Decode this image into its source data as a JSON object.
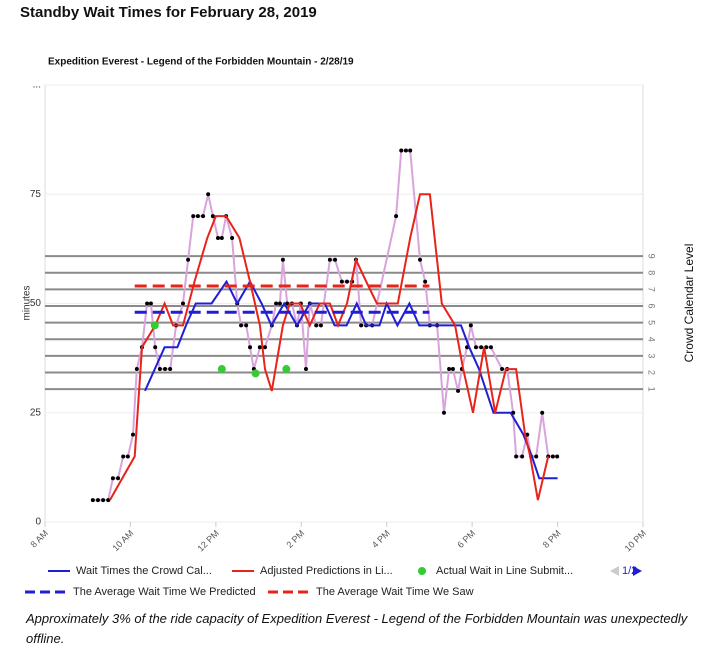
{
  "title": "Standby Wait Times for February 28, 2019",
  "chart_data": {
    "type": "line",
    "title": "Expedition Everest - Legend of the Forbidden Mountain - 2/28/19",
    "y_label": "minutes",
    "y2_label": "Crowd Calendar Level",
    "xlim": [
      8,
      22
    ],
    "xticks": [
      {
        "value": 8,
        "label": "8 AM"
      },
      {
        "value": 10,
        "label": "10 AM"
      },
      {
        "value": 12,
        "label": "12 PM"
      },
      {
        "value": 14,
        "label": "2 PM"
      },
      {
        "value": 16,
        "label": "4 PM"
      },
      {
        "value": 18,
        "label": "6 PM"
      },
      {
        "value": 20,
        "label": "8 PM"
      },
      {
        "value": 22,
        "label": "10 PM"
      }
    ],
    "ylim": [
      0,
      100
    ],
    "yticks": [
      0,
      25,
      50,
      75,
      {
        "value": 100,
        "label": "..."
      }
    ],
    "y2lim": [
      -7,
      19.3
    ],
    "y2ticks": [
      1,
      2,
      3,
      4,
      5,
      6,
      7,
      8,
      9
    ],
    "grid": true,
    "legend_page": "1/2",
    "series": [
      {
        "style": "line",
        "color": "#d9a3dc",
        "x": [
          9.12,
          9.24,
          9.36,
          9.48,
          9.59,
          9.71,
          9.83,
          9.94,
          10.06,
          10.15,
          10.27,
          10.39,
          10.48,
          10.58,
          10.69,
          10.81,
          10.93,
          11.07,
          11.23,
          11.35,
          11.47,
          11.58,
          11.7,
          11.82,
          11.93,
          12.05,
          12.14,
          12.24,
          12.38,
          12.5,
          12.59,
          12.71,
          12.8,
          12.89,
          13.03,
          13.15,
          13.31,
          13.41,
          13.5,
          13.57,
          13.67,
          13.78,
          13.9,
          13.99,
          14.11,
          14.2,
          14.35,
          14.46,
          14.67,
          14.79,
          14.95,
          15.07,
          15.19,
          15.28,
          15.4,
          15.52,
          15.66,
          16.22,
          16.34,
          16.45,
          16.55,
          16.78,
          16.9,
          17.01,
          17.18,
          17.34,
          17.46,
          17.55,
          17.67,
          17.76,
          17.88,
          17.97,
          18.09,
          18.21,
          18.33,
          18.44,
          18.7,
          18.82,
          18.96,
          19.03,
          19.17,
          19.29,
          19.38,
          19.5,
          19.64,
          19.78,
          19.89,
          19.99
        ],
        "values": [
          5,
          5,
          5,
          5,
          10,
          10,
          15,
          15,
          20,
          35,
          40,
          50,
          50,
          40,
          35,
          35,
          35,
          45,
          50,
          60,
          70,
          70,
          70,
          75,
          70,
          65,
          65,
          70,
          65,
          50,
          45,
          45,
          40,
          35,
          40,
          40,
          45,
          50,
          50,
          60,
          50,
          50,
          45,
          50,
          35,
          50,
          45,
          45,
          60,
          60,
          55,
          55,
          55,
          60,
          45,
          45,
          45,
          70,
          85,
          85,
          85,
          60,
          55,
          45,
          45,
          25,
          35,
          35,
          30,
          35,
          40,
          45,
          40,
          40,
          40,
          40,
          35,
          35,
          25,
          15,
          15,
          20,
          15,
          15,
          25,
          15,
          15,
          15
        ],
        "markers": "#000000"
      },
      {
        "name": "Wait Times the Crowd Cal...",
        "style": "line",
        "color": "#1f1fd6",
        "x": [
          10.34,
          10.8,
          11.1,
          11.3,
          11.53,
          11.9,
          12.25,
          12.5,
          12.8,
          13.07,
          13.3,
          13.6,
          13.9,
          14.2,
          14.55,
          14.78,
          15.06,
          15.3,
          15.52,
          15.83,
          16.0,
          16.25,
          16.53,
          16.76,
          17.04,
          17.74,
          17.93,
          18.16,
          18.5,
          18.9,
          19.2,
          19.4,
          19.57,
          20.0
        ],
        "values": [
          30,
          40,
          40,
          45,
          50,
          50,
          55,
          50,
          55,
          50,
          45,
          50,
          45,
          50,
          50,
          45,
          45,
          50,
          45,
          45,
          50,
          45,
          50,
          45,
          45,
          45,
          40,
          35,
          25,
          25,
          20,
          15,
          10,
          10
        ]
      },
      {
        "name": "Adjusted Predictions in Li...",
        "style": "line",
        "color": "#e8231a",
        "x": [
          9.52,
          10.1,
          10.27,
          10.58,
          10.8,
          11.0,
          11.23,
          11.5,
          11.8,
          12.0,
          12.24,
          12.55,
          12.8,
          13.03,
          13.15,
          13.31,
          13.57,
          13.73,
          13.97,
          14.2,
          14.43,
          14.67,
          14.86,
          15.07,
          15.28,
          15.52,
          15.77,
          16.26,
          16.55,
          16.78,
          17.01,
          17.29,
          17.6,
          17.79,
          18.02,
          18.28,
          18.54,
          18.79,
          19.03,
          19.24,
          19.36,
          19.54,
          19.78
        ],
        "values": [
          5,
          15,
          40,
          45,
          50,
          45,
          45,
          55,
          65,
          70,
          70,
          65,
          55,
          45,
          35,
          30,
          45,
          50,
          50,
          45,
          50,
          50,
          45,
          50,
          60,
          55,
          50,
          50,
          65,
          75,
          75,
          50,
          45,
          35,
          25,
          40,
          25,
          35,
          35,
          20,
          15,
          5,
          15
        ]
      },
      {
        "name": "Actual Wait in Line Submit...",
        "style": "dots",
        "color": "#33cc33",
        "x": [
          10.57,
          12.14,
          12.93,
          13.65
        ],
        "values": [
          45,
          35,
          34,
          35
        ]
      },
      {
        "name": "The Average Wait Time We Predicted",
        "style": "dashed",
        "color": "#1f1fd6",
        "x": [
          10.1,
          17.0
        ],
        "values": [
          48,
          48
        ]
      },
      {
        "name": "The Average Wait Time We Saw",
        "style": "dashed",
        "color": "#e8231a",
        "x": [
          10.1,
          17.0
        ],
        "values": [
          54,
          54
        ]
      }
    ]
  },
  "footnote": "Approximately 3% of the ride capacity of Expedition Everest - Legend of the Forbidden Mountain was unexpectedly offline."
}
